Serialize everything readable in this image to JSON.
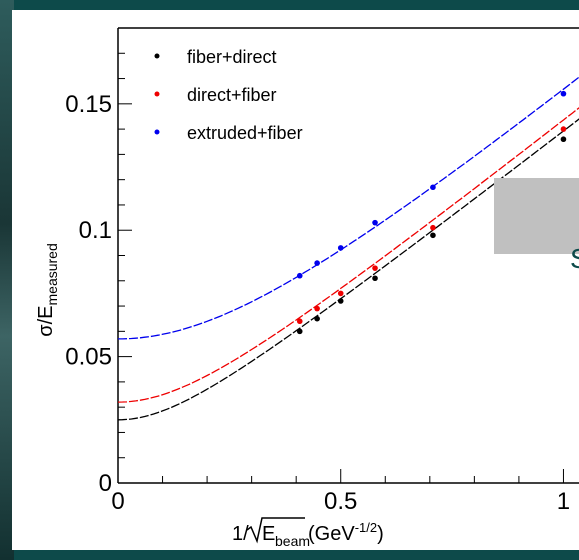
{
  "chart_data": {
    "type": "scatter",
    "xlabel_prefix": "1/",
    "xlabel_sqrt_body": "E",
    "xlabel_sqrt_sub": "beam",
    "xlabel_unit": " (GeV",
    "xlabel_unit_sup": "-1/2",
    "xlabel_unit_close": ")",
    "ylabel_main": "σ/E",
    "ylabel_sub": "measured",
    "xlim": [
      0,
      1.1
    ],
    "ylim": [
      0,
      0.18
    ],
    "x_ticks": [
      {
        "value": 0,
        "label": "0"
      },
      {
        "value": 0.5,
        "label": "0.5"
      },
      {
        "value": 1,
        "label": "1"
      }
    ],
    "y_ticks": [
      {
        "value": 0,
        "label": "0"
      },
      {
        "value": 0.05,
        "label": "0.05"
      },
      {
        "value": 0.1,
        "label": "0.1"
      },
      {
        "value": 0.15,
        "label": "0.15"
      }
    ],
    "series": [
      {
        "name": "fiber+direct",
        "color": "#000000",
        "x": [
          0.408,
          0.447,
          0.5,
          0.577,
          0.707,
          1.0
        ],
        "y": [
          0.06,
          0.065,
          0.072,
          0.081,
          0.098,
          0.136
        ],
        "fit": {
          "a": 0.025,
          "b": 0.137
        }
      },
      {
        "name": "direct+fiber",
        "color": "#ee0000",
        "x": [
          0.408,
          0.447,
          0.5,
          0.577,
          0.707,
          1.0
        ],
        "y": [
          0.064,
          0.069,
          0.075,
          0.085,
          0.101,
          0.14
        ],
        "fit": {
          "a": 0.032,
          "b": 0.14
        }
      },
      {
        "name": "extruded+fiber",
        "color": "#0000ee",
        "x": [
          0.408,
          0.447,
          0.5,
          0.577,
          0.707,
          1.0
        ],
        "y": [
          0.082,
          0.087,
          0.093,
          0.103,
          0.117,
          0.154
        ],
        "fit": {
          "a": 0.057,
          "b": 0.145
        }
      }
    ]
  },
  "overlay": {
    "label": "S",
    "fill": "#c0c0c0"
  }
}
